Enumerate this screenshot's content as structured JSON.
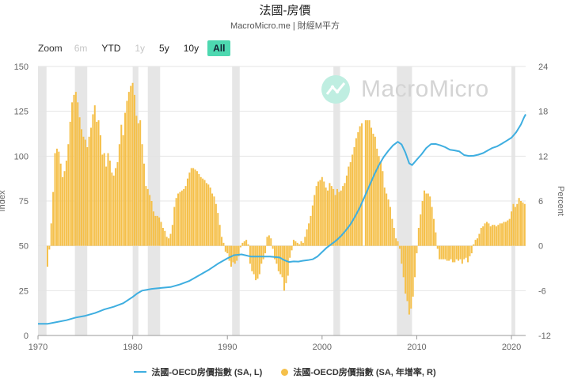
{
  "header": {
    "title": "法國-房價",
    "subtitle": "MacroMicro.me | 財經M平方"
  },
  "zoom": {
    "label": "Zoom",
    "buttons": [
      {
        "label": "6m",
        "state": "disabled"
      },
      {
        "label": "YTD",
        "state": "normal"
      },
      {
        "label": "1y",
        "state": "disabled"
      },
      {
        "label": "5y",
        "state": "normal"
      },
      {
        "label": "10y",
        "state": "normal"
      },
      {
        "label": "All",
        "state": "active"
      }
    ]
  },
  "watermark": {
    "text": "MacroMicro",
    "icon": "macromicro-logo-icon"
  },
  "legend": {
    "line_label": "法國-OECD房價指數 (SA, L)",
    "bar_label": "法國-OECD房價指數 (SA, 年增率, R)"
  },
  "colors": {
    "line": "#3eaee0",
    "bars": "#f5c04a",
    "recession": "#e6e6e6",
    "accent": "#4dd8b0"
  },
  "chart_data": {
    "type": "line+bar",
    "x_range": [
      1970,
      2021.5
    ],
    "x_ticks": [
      1970,
      1980,
      1990,
      2000,
      2010,
      2020
    ],
    "y_left": {
      "label": "Index",
      "range": [
        0,
        150
      ],
      "ticks": [
        0,
        25,
        50,
        75,
        100,
        125,
        150
      ]
    },
    "y_right": {
      "label": "Percent",
      "range": [
        -12,
        24
      ],
      "ticks": [
        -12,
        -6,
        0,
        6,
        12,
        18,
        24
      ]
    },
    "recessions": [
      [
        1970.0,
        1970.9
      ],
      [
        1973.9,
        1975.2
      ],
      [
        1980.0,
        1980.6
      ],
      [
        1981.6,
        1982.9
      ],
      [
        1990.5,
        1991.3
      ],
      [
        2001.2,
        2001.9
      ],
      [
        2007.9,
        2009.5
      ],
      [
        2020.0,
        2020.4
      ]
    ],
    "line_series": {
      "name": "法國-OECD房價指數 (SA, L)",
      "points": [
        [
          1970.0,
          6.5
        ],
        [
          1971.0,
          6.5
        ],
        [
          1972.0,
          7.5
        ],
        [
          1973.0,
          8.5
        ],
        [
          1974.0,
          10.0
        ],
        [
          1975.0,
          11.0
        ],
        [
          1976.0,
          12.5
        ],
        [
          1977.0,
          14.5
        ],
        [
          1978.0,
          16.0
        ],
        [
          1979.0,
          18.0
        ],
        [
          1980.0,
          21.5
        ],
        [
          1980.5,
          23.5
        ],
        [
          1981.0,
          25.0
        ],
        [
          1982.0,
          26.0
        ],
        [
          1983.0,
          26.5
        ],
        [
          1984.0,
          27.0
        ],
        [
          1985.0,
          28.5
        ],
        [
          1986.0,
          30.5
        ],
        [
          1987.0,
          33.5
        ],
        [
          1988.0,
          36.5
        ],
        [
          1989.0,
          40.0
        ],
        [
          1990.0,
          43.0
        ],
        [
          1990.7,
          44.8
        ],
        [
          1991.5,
          45.2
        ],
        [
          1992.5,
          44.0
        ],
        [
          1993.5,
          44.0
        ],
        [
          1994.5,
          44.0
        ],
        [
          1995.5,
          43.5
        ],
        [
          1996.0,
          42.0
        ],
        [
          1996.5,
          41.0
        ],
        [
          1997.0,
          41.3
        ],
        [
          1997.5,
          41.2
        ],
        [
          1998.0,
          41.7
        ],
        [
          1998.5,
          42.0
        ],
        [
          1999.0,
          42.5
        ],
        [
          1999.5,
          44.0
        ],
        [
          2000.0,
          46.5
        ],
        [
          2000.5,
          49.0
        ],
        [
          2001.0,
          51.0
        ],
        [
          2001.5,
          53.0
        ],
        [
          2002.0,
          55.5
        ],
        [
          2002.5,
          58.5
        ],
        [
          2003.0,
          62.0
        ],
        [
          2003.5,
          66.5
        ],
        [
          2004.0,
          71.5
        ],
        [
          2004.5,
          77.5
        ],
        [
          2005.0,
          83.5
        ],
        [
          2005.5,
          89.5
        ],
        [
          2006.0,
          95.0
        ],
        [
          2006.5,
          99.5
        ],
        [
          2007.0,
          103.0
        ],
        [
          2007.5,
          106.0
        ],
        [
          2008.0,
          108.0
        ],
        [
          2008.4,
          106.5
        ],
        [
          2008.8,
          102.0
        ],
        [
          2009.2,
          96.0
        ],
        [
          2009.5,
          95.0
        ],
        [
          2010.0,
          98.0
        ],
        [
          2010.5,
          101.0
        ],
        [
          2011.0,
          104.5
        ],
        [
          2011.5,
          106.7
        ],
        [
          2012.0,
          106.8
        ],
        [
          2012.5,
          106.0
        ],
        [
          2013.0,
          105.0
        ],
        [
          2013.5,
          103.6
        ],
        [
          2014.0,
          103.2
        ],
        [
          2014.5,
          102.6
        ],
        [
          2015.0,
          100.6
        ],
        [
          2015.5,
          100.1
        ],
        [
          2016.0,
          100.2
        ],
        [
          2016.5,
          100.8
        ],
        [
          2017.0,
          101.7
        ],
        [
          2017.5,
          103.2
        ],
        [
          2018.0,
          104.6
        ],
        [
          2018.5,
          105.5
        ],
        [
          2019.0,
          107.0
        ],
        [
          2019.5,
          108.6
        ],
        [
          2020.0,
          110.3
        ],
        [
          2020.5,
          113.3
        ],
        [
          2021.0,
          117.6
        ],
        [
          2021.3,
          121.3
        ],
        [
          2021.5,
          123.3
        ]
      ]
    },
    "bar_series": {
      "name": "法國-OECD房價指數 (SA, 年增率, R)",
      "points": [
        [
          1971.0,
          -2.8
        ],
        [
          1971.2,
          -0.5
        ],
        [
          1971.4,
          3.0
        ],
        [
          1971.6,
          7.2
        ],
        [
          1971.8,
          12.4
        ],
        [
          1972.0,
          13.0
        ],
        [
          1972.2,
          12.6
        ],
        [
          1972.4,
          11.0
        ],
        [
          1972.6,
          9.2
        ],
        [
          1972.8,
          10.0
        ],
        [
          1973.0,
          11.4
        ],
        [
          1973.2,
          13.6
        ],
        [
          1973.4,
          16.6
        ],
        [
          1973.6,
          19.2
        ],
        [
          1973.8,
          20.2
        ],
        [
          1974.0,
          20.6
        ],
        [
          1974.2,
          19.2
        ],
        [
          1974.4,
          17.2
        ],
        [
          1974.6,
          15.6
        ],
        [
          1974.8,
          14.6
        ],
        [
          1975.0,
          14.2
        ],
        [
          1975.2,
          13.2
        ],
        [
          1975.4,
          14.6
        ],
        [
          1975.6,
          15.8
        ],
        [
          1975.8,
          17.6
        ],
        [
          1976.0,
          18.8
        ],
        [
          1976.2,
          16.6
        ],
        [
          1976.4,
          16.8
        ],
        [
          1976.6,
          14.8
        ],
        [
          1976.8,
          12.2
        ],
        [
          1977.0,
          12.4
        ],
        [
          1977.2,
          10.6
        ],
        [
          1977.4,
          12.4
        ],
        [
          1977.6,
          11.4
        ],
        [
          1977.8,
          9.8
        ],
        [
          1978.0,
          9.4
        ],
        [
          1978.2,
          10.4
        ],
        [
          1978.4,
          11.2
        ],
        [
          1978.6,
          13.6
        ],
        [
          1978.8,
          16.2
        ],
        [
          1979.0,
          14.8
        ],
        [
          1979.2,
          17.8
        ],
        [
          1979.4,
          19.4
        ],
        [
          1979.6,
          20.6
        ],
        [
          1979.8,
          21.4
        ],
        [
          1980.0,
          21.8
        ],
        [
          1980.2,
          20.2
        ],
        [
          1980.4,
          17.4
        ],
        [
          1980.6,
          16.4
        ],
        [
          1980.8,
          16.8
        ],
        [
          1981.0,
          13.6
        ],
        [
          1981.2,
          11.0
        ],
        [
          1981.4,
          8.0
        ],
        [
          1981.6,
          7.6
        ],
        [
          1981.8,
          6.8
        ],
        [
          1982.0,
          6.0
        ],
        [
          1982.2,
          4.6
        ],
        [
          1982.4,
          4.0
        ],
        [
          1982.6,
          4.0
        ],
        [
          1982.8,
          3.8
        ],
        [
          1983.0,
          3.2
        ],
        [
          1983.2,
          2.4
        ],
        [
          1983.4,
          2.0
        ],
        [
          1983.6,
          1.2
        ],
        [
          1983.8,
          1.0
        ],
        [
          1984.0,
          1.6
        ],
        [
          1984.2,
          2.8
        ],
        [
          1984.4,
          5.2
        ],
        [
          1984.6,
          6.4
        ],
        [
          1984.8,
          7.0
        ],
        [
          1985.0,
          7.2
        ],
        [
          1985.2,
          7.4
        ],
        [
          1985.4,
          7.6
        ],
        [
          1985.6,
          8.0
        ],
        [
          1985.8,
          9.0
        ],
        [
          1986.0,
          9.8
        ],
        [
          1986.2,
          10.4
        ],
        [
          1986.4,
          10.4
        ],
        [
          1986.6,
          10.2
        ],
        [
          1986.8,
          10.0
        ],
        [
          1987.0,
          9.6
        ],
        [
          1987.2,
          9.2
        ],
        [
          1987.4,
          9.0
        ],
        [
          1987.6,
          8.8
        ],
        [
          1987.8,
          8.4
        ],
        [
          1988.0,
          8.2
        ],
        [
          1988.2,
          7.8
        ],
        [
          1988.4,
          7.0
        ],
        [
          1988.6,
          6.6
        ],
        [
          1988.8,
          5.6
        ],
        [
          1989.0,
          4.4
        ],
        [
          1989.2,
          2.8
        ],
        [
          1989.4,
          1.2
        ],
        [
          1989.6,
          0.4
        ],
        [
          1989.8,
          -0.8
        ],
        [
          1990.0,
          -1.0
        ],
        [
          1990.2,
          -2.0
        ],
        [
          1990.4,
          -2.8
        ],
        [
          1990.6,
          -2.2
        ],
        [
          1990.8,
          -2.4
        ],
        [
          1991.0,
          -2.0
        ],
        [
          1991.2,
          -1.4
        ],
        [
          1991.4,
          -0.2
        ],
        [
          1991.6,
          0.4
        ],
        [
          1991.8,
          0.6
        ],
        [
          1992.0,
          0.8
        ],
        [
          1992.2,
          0.2
        ],
        [
          1992.4,
          -2.4
        ],
        [
          1992.6,
          -3.4
        ],
        [
          1992.8,
          -3.8
        ],
        [
          1993.0,
          -4.6
        ],
        [
          1993.2,
          -4.4
        ],
        [
          1993.4,
          -3.8
        ],
        [
          1993.6,
          -2.4
        ],
        [
          1993.8,
          -1.8
        ],
        [
          1994.0,
          -1.0
        ],
        [
          1994.2,
          1.2
        ],
        [
          1994.4,
          1.4
        ],
        [
          1994.6,
          1.0
        ],
        [
          1994.8,
          -0.4
        ],
        [
          1995.0,
          -1.8
        ],
        [
          1995.2,
          -2.4
        ],
        [
          1995.4,
          -3.4
        ],
        [
          1995.6,
          -3.8
        ],
        [
          1995.8,
          -4.2
        ],
        [
          1996.0,
          -6.0
        ],
        [
          1996.2,
          -5.0
        ],
        [
          1996.4,
          -4.0
        ],
        [
          1996.6,
          -1.6
        ],
        [
          1996.8,
          -0.6
        ],
        [
          1997.0,
          0.8
        ],
        [
          1997.2,
          0.6
        ],
        [
          1997.4,
          0.4
        ],
        [
          1997.6,
          0.2
        ],
        [
          1997.8,
          0.6
        ],
        [
          1998.0,
          0.4
        ],
        [
          1998.2,
          1.2
        ],
        [
          1998.4,
          2.2
        ],
        [
          1998.6,
          3.0
        ],
        [
          1998.8,
          4.0
        ],
        [
          1999.0,
          5.4
        ],
        [
          1999.2,
          6.8
        ],
        [
          1999.4,
          8.0
        ],
        [
          1999.6,
          8.6
        ],
        [
          1999.8,
          8.8
        ],
        [
          2000.0,
          9.2
        ],
        [
          2000.2,
          8.6
        ],
        [
          2000.4,
          7.8
        ],
        [
          2000.6,
          7.4
        ],
        [
          2000.8,
          8.4
        ],
        [
          2001.0,
          8.0
        ],
        [
          2001.2,
          7.6
        ],
        [
          2001.4,
          6.8
        ],
        [
          2001.6,
          7.6
        ],
        [
          2001.8,
          7.2
        ],
        [
          2002.0,
          7.4
        ],
        [
          2002.2,
          8.0
        ],
        [
          2002.4,
          8.4
        ],
        [
          2002.6,
          9.4
        ],
        [
          2002.8,
          10.6
        ],
        [
          2003.0,
          11.2
        ],
        [
          2003.2,
          12.2
        ],
        [
          2003.4,
          13.2
        ],
        [
          2003.6,
          14.4
        ],
        [
          2003.8,
          15.2
        ],
        [
          2004.0,
          16.0
        ],
        [
          2004.2,
          16.4
        ],
        [
          2004.6,
          16.8
        ],
        [
          2004.8,
          16.8
        ],
        [
          2005.0,
          16.8
        ],
        [
          2005.2,
          15.8
        ],
        [
          2005.4,
          15.0
        ],
        [
          2005.6,
          14.6
        ],
        [
          2005.8,
          13.0
        ],
        [
          2006.0,
          12.0
        ],
        [
          2006.2,
          11.2
        ],
        [
          2006.4,
          10.0
        ],
        [
          2006.6,
          7.8
        ],
        [
          2006.8,
          7.0
        ],
        [
          2007.0,
          6.2
        ],
        [
          2007.2,
          5.2
        ],
        [
          2007.4,
          3.6
        ],
        [
          2007.6,
          2.4
        ],
        [
          2007.8,
          1.0
        ],
        [
          2008.0,
          0.6
        ],
        [
          2008.2,
          -0.4
        ],
        [
          2008.4,
          -2.4
        ],
        [
          2008.6,
          -4.2
        ],
        [
          2008.8,
          -6.4
        ],
        [
          2009.0,
          -7.4
        ],
        [
          2009.2,
          -9.2
        ],
        [
          2009.4,
          -8.4
        ],
        [
          2009.6,
          -6.8
        ],
        [
          2009.8,
          -4.2
        ],
        [
          2010.0,
          -1.0
        ],
        [
          2010.2,
          2.4
        ],
        [
          2010.4,
          4.2
        ],
        [
          2010.6,
          6.0
        ],
        [
          2010.8,
          7.4
        ],
        [
          2011.0,
          7.0
        ],
        [
          2011.2,
          7.0
        ],
        [
          2011.4,
          6.6
        ],
        [
          2011.6,
          5.2
        ],
        [
          2011.8,
          3.6
        ],
        [
          2012.0,
          1.8
        ],
        [
          2012.2,
          -0.4
        ],
        [
          2012.4,
          -1.8
        ],
        [
          2012.6,
          -1.8
        ],
        [
          2012.8,
          -1.8
        ],
        [
          2013.0,
          -1.8
        ],
        [
          2013.2,
          -2.0
        ],
        [
          2013.4,
          -2.0
        ],
        [
          2013.6,
          -1.8
        ],
        [
          2013.8,
          -2.2
        ],
        [
          2014.0,
          -2.2
        ],
        [
          2014.2,
          -1.8
        ],
        [
          2014.4,
          -2.0
        ],
        [
          2014.6,
          -1.8
        ],
        [
          2014.8,
          -2.4
        ],
        [
          2015.0,
          -1.8
        ],
        [
          2015.2,
          -1.6
        ],
        [
          2015.4,
          -2.2
        ],
        [
          2015.6,
          -1.4
        ],
        [
          2015.8,
          -1.0
        ],
        [
          2016.0,
          0.2
        ],
        [
          2016.2,
          0.8
        ],
        [
          2016.4,
          1.0
        ],
        [
          2016.6,
          1.6
        ],
        [
          2016.8,
          2.4
        ],
        [
          2017.0,
          2.6
        ],
        [
          2017.2,
          3.0
        ],
        [
          2017.4,
          3.2
        ],
        [
          2017.6,
          3.0
        ],
        [
          2017.8,
          2.6
        ],
        [
          2018.0,
          2.8
        ],
        [
          2018.2,
          2.8
        ],
        [
          2018.4,
          2.6
        ],
        [
          2018.6,
          2.8
        ],
        [
          2018.8,
          3.0
        ],
        [
          2019.0,
          3.0
        ],
        [
          2019.2,
          3.2
        ],
        [
          2019.4,
          3.2
        ],
        [
          2019.6,
          3.4
        ],
        [
          2019.8,
          3.6
        ],
        [
          2020.0,
          4.6
        ],
        [
          2020.2,
          5.6
        ],
        [
          2020.4,
          5.2
        ],
        [
          2020.6,
          5.6
        ],
        [
          2020.8,
          6.4
        ],
        [
          2021.0,
          6.0
        ],
        [
          2021.2,
          5.8
        ],
        [
          2021.4,
          5.6
        ]
      ]
    }
  }
}
